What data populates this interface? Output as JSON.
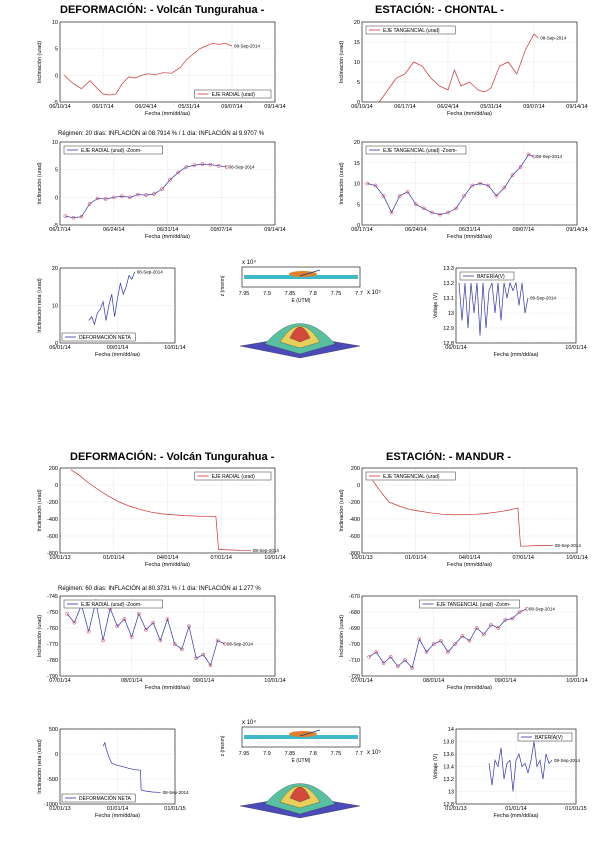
{
  "section1": {
    "title_left": "DEFORMACIÓN: - Volcán Tungurahua -",
    "title_right": "ESTACIÓN: - CHONTAL -",
    "regimen": "Régimen: 20 días: INFLACIÓN al 08.7914 % / 1 día: INFLACIÓN al 9.9707 %"
  },
  "section2": {
    "title_left": "DEFORMACIÓN: - Volcán Tungurahua -",
    "title_right": "ESTACIÓN: - MANDUR -",
    "regimen": "Régimen: 60 días: INFLACIÓN al 80.3731 % / 1 día: INFLACIÓN al 1.277 %"
  },
  "chart_data": [
    {
      "id": "c1",
      "type": "line",
      "xlabel": "Fecha (mm/dd/aa)",
      "ylabel": "Inclinación (urad)",
      "xticks": [
        "06/10/14",
        "06/17/14",
        "06/24/14",
        "05/31/14",
        "09/07/14",
        "09/14/14"
      ],
      "xlim": [
        0,
        5
      ],
      "yticks": [
        "-5",
        "0",
        "5",
        "10"
      ],
      "ylim": [
        -5,
        10
      ],
      "legend": [
        "EJE RADIAL (urad)"
      ],
      "legend_pos": "bottom-right",
      "annotation": "08-Sep-2014",
      "color": "#cc3333",
      "markers": false,
      "x": [
        0.1,
        0.3,
        0.5,
        0.7,
        0.85,
        1.0,
        1.15,
        1.3,
        1.45,
        1.6,
        1.75,
        1.9,
        2.05,
        2.2,
        2.4,
        2.6,
        2.8,
        2.95,
        3.1,
        3.25,
        3.4,
        3.55,
        3.7,
        3.85,
        4.0
      ],
      "y": [
        0,
        -1.5,
        -2.5,
        -1,
        -2.3,
        -3.5,
        -3.7,
        -3.5,
        -1.5,
        -0.3,
        -0.5,
        0,
        0.3,
        0.1,
        0.5,
        0.4,
        1.5,
        3,
        4,
        5,
        5.5,
        6,
        5.8,
        6,
        5.5
      ]
    },
    {
      "id": "c2",
      "type": "line",
      "xlabel": "Fecha (mm/dd/aa)",
      "ylabel": "Inclinación (urad)",
      "xticks": [
        "06/10/14",
        "06/17/14",
        "06/24/14",
        "05/31/14",
        "09/07/14",
        "09/14/14"
      ],
      "xlim": [
        0,
        5
      ],
      "yticks": [
        "0",
        "5",
        "10",
        "15",
        "20"
      ],
      "ylim": [
        0,
        20
      ],
      "legend": [
        "EJE TANGENCIAL (urad)"
      ],
      "legend_pos": "top-left",
      "annotation": "08-Sep-2014",
      "color": "#cc3333",
      "markers": false,
      "x": [
        0.4,
        0.6,
        0.8,
        1.0,
        1.2,
        1.4,
        1.6,
        1.8,
        2.0,
        2.15,
        2.3,
        2.5,
        2.7,
        2.85,
        3.0,
        3.2,
        3.4,
        3.6,
        3.8,
        4.0,
        4.1
      ],
      "y": [
        0,
        3,
        6,
        7,
        10,
        9,
        6,
        4,
        3,
        8,
        4,
        5,
        3,
        2.5,
        3.5,
        9,
        10,
        7,
        13,
        17,
        16
      ]
    },
    {
      "id": "c3",
      "type": "line",
      "xlabel": "Fecha (mm/dd/aa)",
      "ylabel": "Inclinación (urad)",
      "xticks": [
        "06/17/14",
        "06/24/14",
        "06/31/14",
        "09/07/14",
        "09/14/14"
      ],
      "xlim": [
        0,
        4
      ],
      "yticks": [
        "-5",
        "0",
        "5",
        "10"
      ],
      "ylim": [
        -5,
        10
      ],
      "legend": [
        "EJE RADIAL (urad) -Zoom-"
      ],
      "legend_pos": "top-left",
      "annotation": "08-Sep-2014",
      "color": "#3333aa",
      "markers": true,
      "x": [
        0.1,
        0.25,
        0.4,
        0.55,
        0.7,
        0.85,
        1.0,
        1.15,
        1.3,
        1.45,
        1.6,
        1.75,
        1.9,
        2.05,
        2.2,
        2.35,
        2.5,
        2.65,
        2.8,
        2.95,
        3.1
      ],
      "y": [
        -3.4,
        -3.7,
        -3.5,
        -1.2,
        -0.2,
        -0.3,
        0,
        0.2,
        0,
        0.5,
        0.4,
        0.6,
        1.5,
        3.2,
        4.5,
        5.5,
        5.8,
        6,
        5.9,
        5.7,
        5.5
      ]
    },
    {
      "id": "c4",
      "type": "line",
      "xlabel": "Fecha (mm/dd/aa)",
      "ylabel": "Inclinación (urad)",
      "xticks": [
        "06/17/14",
        "06/24/14",
        "06/31/14",
        "09/07/14",
        "09/14/14"
      ],
      "xlim": [
        0,
        4
      ],
      "yticks": [
        "0",
        "5",
        "10",
        "15",
        "20"
      ],
      "ylim": [
        0,
        20
      ],
      "legend": [
        "EJE TANGENCIAL (urad) -Zoom-"
      ],
      "legend_pos": "top-left",
      "annotation": "08-Sep-2014",
      "color": "#3333aa",
      "markers": true,
      "x": [
        0.1,
        0.25,
        0.4,
        0.55,
        0.7,
        0.85,
        1.0,
        1.15,
        1.3,
        1.45,
        1.6,
        1.75,
        1.9,
        2.05,
        2.2,
        2.35,
        2.5,
        2.65,
        2.8,
        2.95,
        3.1,
        3.2
      ],
      "y": [
        10,
        9.5,
        7,
        3,
        7,
        8,
        5,
        4,
        3,
        2.5,
        3,
        4,
        7,
        9.5,
        10,
        9.5,
        7,
        9,
        12,
        14,
        17,
        16.5
      ]
    },
    {
      "id": "c5",
      "type": "line",
      "xlabel": "Fecha (mm/dd/aa)",
      "ylabel": "Inclinación neta (urad)",
      "xticks": [
        "06/01/14",
        "09/01/14",
        "10/01/14"
      ],
      "xlim": [
        0,
        2
      ],
      "yticks": [
        "0",
        "10",
        "20"
      ],
      "ylim": [
        0,
        20
      ],
      "legend": [
        "DEFORMACIÓN NETA"
      ],
      "legend_pos": "bottom",
      "annotation": "08-Sep-2014",
      "color": "#3333aa",
      "markers": false,
      "x": [
        0.5,
        0.55,
        0.6,
        0.65,
        0.7,
        0.75,
        0.8,
        0.85,
        0.9,
        0.95,
        1.0,
        1.05,
        1.1,
        1.15,
        1.2,
        1.25,
        1.3
      ],
      "y": [
        6,
        7,
        5,
        8,
        9,
        11,
        6,
        10,
        13,
        7,
        12,
        16,
        13,
        15,
        18,
        17,
        19
      ]
    },
    {
      "id": "c6",
      "type": "line",
      "xlabel": "Fecha (mm/dd/aa)",
      "ylabel": "Voltaje (V)",
      "xticks": [
        "06/01/14",
        "10/01/14"
      ],
      "xlim": [
        0,
        2
      ],
      "yticks": [
        "12.8",
        "12.9",
        "13",
        "13.1",
        "13.2",
        "13.3"
      ],
      "ylim": [
        12.8,
        13.3
      ],
      "legend": [
        "BATERÍA(V)"
      ],
      "legend_pos": "top-left",
      "annotation": "09-Sep-2014",
      "color": "#3333aa",
      "markers": false,
      "x": [
        0.05,
        0.1,
        0.15,
        0.2,
        0.25,
        0.3,
        0.35,
        0.4,
        0.45,
        0.5,
        0.55,
        0.6,
        0.65,
        0.7,
        0.75,
        0.8,
        0.85,
        0.9,
        0.95,
        1.0,
        1.05,
        1.1,
        1.15,
        1.2
      ],
      "y": [
        13.2,
        12.95,
        13.2,
        12.9,
        13.2,
        13.0,
        13.2,
        12.85,
        13.2,
        12.9,
        13.15,
        13.2,
        13.0,
        13.2,
        12.95,
        13.2,
        13.1,
        13.2,
        13.15,
        13.2,
        13.05,
        13.2,
        13.0,
        13.1
      ]
    },
    {
      "id": "c7",
      "type": "line",
      "xlabel": "Fecha (mm/dd/aa)",
      "ylabel": "Inclinación (urad)",
      "xticks": [
        "10/01/13",
        "01/01/14",
        "04/01/14",
        "07/01/14",
        "10/01/14"
      ],
      "xlim": [
        0,
        4
      ],
      "yticks": [
        "-800",
        "-600",
        "-400",
        "-200",
        "0",
        "200"
      ],
      "ylim": [
        -800,
        200
      ],
      "legend": [
        "EJE RADIAL (urad)"
      ],
      "legend_pos": "top-right",
      "annotation": "08-Sep-2014",
      "color": "#cc3333",
      "markers": false,
      "x": [
        0.2,
        0.35,
        0.5,
        0.7,
        0.9,
        1.1,
        1.3,
        1.5,
        1.7,
        1.9,
        2.1,
        2.3,
        2.5,
        2.7,
        2.9,
        2.95,
        3.0,
        3.2,
        3.4,
        3.55
      ],
      "y": [
        180,
        120,
        40,
        -50,
        -130,
        -200,
        -250,
        -290,
        -320,
        -340,
        -350,
        -360,
        -365,
        -370,
        -370,
        -760,
        -760,
        -765,
        -770,
        -770
      ]
    },
    {
      "id": "c8",
      "type": "line",
      "xlabel": "Fecha (mm/dd/aa)",
      "ylabel": "Inclinación (urad)",
      "xticks": [
        "10/01/13",
        "01/01/14",
        "04/01/14",
        "07/01/14",
        "10/01/14"
      ],
      "xlim": [
        0,
        4
      ],
      "yticks": [
        "-800",
        "-600",
        "-400",
        "-200",
        "0",
        "200"
      ],
      "ylim": [
        -800,
        200
      ],
      "legend": [
        "EJE TANGENCIAL (urad)"
      ],
      "legend_pos": "top-left",
      "annotation": "08-Sep-2014",
      "color": "#cc3333",
      "markers": false,
      "x": [
        0.2,
        0.35,
        0.5,
        0.7,
        0.9,
        1.1,
        1.3,
        1.5,
        1.7,
        1.9,
        2.1,
        2.3,
        2.5,
        2.7,
        2.9,
        2.95,
        3.0,
        3.2,
        3.4,
        3.55
      ],
      "y": [
        50,
        -80,
        -200,
        -250,
        -290,
        -310,
        -330,
        -345,
        -350,
        -350,
        -345,
        -335,
        -320,
        -300,
        -270,
        -720,
        -720,
        -715,
        -710,
        -710
      ]
    },
    {
      "id": "c9",
      "type": "line",
      "xlabel": "Fecha (mm/dd/aa)",
      "ylabel": "Inclinación (urad)",
      "xticks": [
        "07/01/14",
        "08/01/14",
        "09/01/14",
        "10/01/14"
      ],
      "xlim": [
        0,
        3
      ],
      "yticks": [
        "-790",
        "-780",
        "-770",
        "-760",
        "-750",
        "-745"
      ],
      "ylim": [
        -790,
        -745
      ],
      "legend": [
        "EJE RADIAL (urad) -Zoom-"
      ],
      "legend_pos": "top-left",
      "annotation": "08-Sep-2014",
      "color": "#3333aa",
      "markers": true,
      "x": [
        0.1,
        0.2,
        0.3,
        0.4,
        0.5,
        0.6,
        0.7,
        0.8,
        0.9,
        1.0,
        1.1,
        1.2,
        1.3,
        1.4,
        1.5,
        1.6,
        1.7,
        1.8,
        1.9,
        2.0,
        2.1,
        2.2,
        2.3
      ],
      "y": [
        -755,
        -760,
        -750,
        -765,
        -748,
        -770,
        -752,
        -762,
        -758,
        -768,
        -755,
        -764,
        -760,
        -770,
        -758,
        -772,
        -775,
        -762,
        -780,
        -778,
        -784,
        -770,
        -772
      ]
    },
    {
      "id": "c10",
      "type": "line",
      "xlabel": "Fecha (mm/dd/aa)",
      "ylabel": "Inclinación (urad)",
      "xticks": [
        "07/01/14",
        "08/01/14",
        "09/01/14",
        "10/01/14"
      ],
      "xlim": [
        0,
        3
      ],
      "yticks": [
        "-720",
        "-710",
        "-700",
        "-690",
        "-680",
        "-670"
      ],
      "ylim": [
        -720,
        -670
      ],
      "legend": [
        "EJE TANGENCIAL (urad) -Zoom-"
      ],
      "legend_pos": "top-center",
      "annotation": "08-Sep-2014",
      "color": "#3333aa",
      "markers": true,
      "x": [
        0.1,
        0.2,
        0.3,
        0.4,
        0.5,
        0.6,
        0.7,
        0.8,
        0.9,
        1.0,
        1.1,
        1.2,
        1.3,
        1.4,
        1.5,
        1.6,
        1.7,
        1.8,
        1.9,
        2.0,
        2.1,
        2.2,
        2.3
      ],
      "y": [
        -708,
        -705,
        -712,
        -708,
        -714,
        -710,
        -715,
        -697,
        -705,
        -700,
        -698,
        -705,
        -700,
        -695,
        -698,
        -690,
        -694,
        -688,
        -690,
        -685,
        -684,
        -680,
        -678
      ]
    },
    {
      "id": "c11",
      "type": "line",
      "xlabel": "Fecha (mm/dd/aa)",
      "ylabel": "Inclinación neta (urad)",
      "xticks": [
        "01/01/13",
        "01/01/14",
        "01/01/15"
      ],
      "xlim": [
        0,
        2
      ],
      "yticks": [
        "-1000",
        "-500",
        "0",
        "500"
      ],
      "ylim": [
        -1250,
        500
      ],
      "legend": [
        "DEFORMACIÓN NETA"
      ],
      "legend_pos": "bottom",
      "annotation": "08-Sep-2014",
      "color": "#3333aa",
      "markers": false,
      "x": [
        0.75,
        0.78,
        0.8,
        0.85,
        0.9,
        1.0,
        1.1,
        1.2,
        1.3,
        1.4,
        1.41,
        1.42,
        1.5,
        1.6,
        1.75
      ],
      "y": [
        100,
        180,
        50,
        -150,
        -300,
        -350,
        -380,
        -420,
        -450,
        -460,
        -900,
        -930,
        -950,
        -970,
        -980
      ]
    },
    {
      "id": "c12",
      "type": "line",
      "xlabel": "Fecha (mm/dd/aa)",
      "ylabel": "Voltaje (V)",
      "xticks": [
        "01/01/13",
        "01/01/14",
        "01/01/15"
      ],
      "xlim": [
        0,
        2
      ],
      "yticks": [
        "12.8",
        "13",
        "13.2",
        "13.4",
        "13.6",
        "13.8",
        "14"
      ],
      "ylim": [
        12.8,
        14
      ],
      "legend": [
        "BATERÍA(V)"
      ],
      "legend_pos": "top-right",
      "annotation": "09-Sep-2014",
      "color": "#3333aa",
      "markers": false,
      "x": [
        0.55,
        0.6,
        0.65,
        0.7,
        0.75,
        0.8,
        0.85,
        0.9,
        0.95,
        1.0,
        1.05,
        1.1,
        1.15,
        1.2,
        1.25,
        1.3,
        1.35,
        1.4,
        1.45,
        1.5,
        1.55,
        1.6
      ],
      "y": [
        13.45,
        13.1,
        13.5,
        13.4,
        13.7,
        13.2,
        13.45,
        13.5,
        13.0,
        13.5,
        13.6,
        13.4,
        13.45,
        13.3,
        13.5,
        13.8,
        13.4,
        13.5,
        13.2,
        13.6,
        13.45,
        13.5
      ]
    }
  ],
  "models3d": {
    "m1": {
      "ylabel": "z (msnm)",
      "xlabel": "E (UTM)",
      "ticks": [
        "7.95",
        "7.9",
        "7.85",
        "7.8",
        "7.75",
        "7.7"
      ],
      "exp_top": "x 10⁴",
      "exp_right": "x 10⁵"
    },
    "m2": {
      "ylabel": "z (msnm)",
      "xlabel": "E (UTM)",
      "ticks": [
        "7.95",
        "7.9",
        "7.85",
        "7.8",
        "7.75",
        "7.7"
      ],
      "exp_top": "x 10⁴",
      "exp_right": "x 10⁵"
    }
  }
}
